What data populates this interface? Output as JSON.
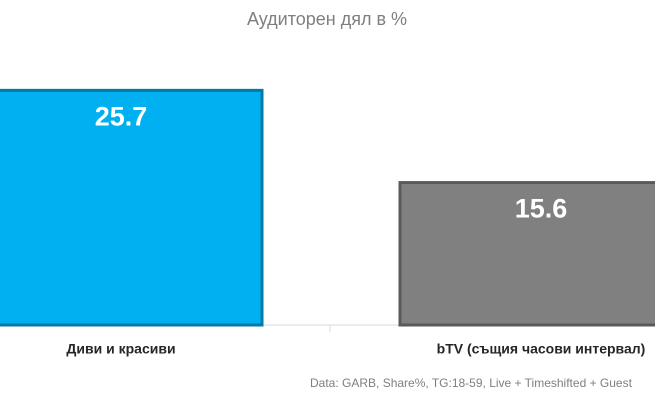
{
  "chart_data": {
    "type": "bar",
    "title": "Аудиторен дял в %",
    "categories": [
      "Диви и красиви",
      "bTV (същия часови интервал)"
    ],
    "values": [
      25.7,
      15.6
    ],
    "colors": [
      "#00b0f0",
      "#808080"
    ],
    "note": "Data: GARB, Share%, TG:18-59, Live + Timeshifted + Guest"
  }
}
